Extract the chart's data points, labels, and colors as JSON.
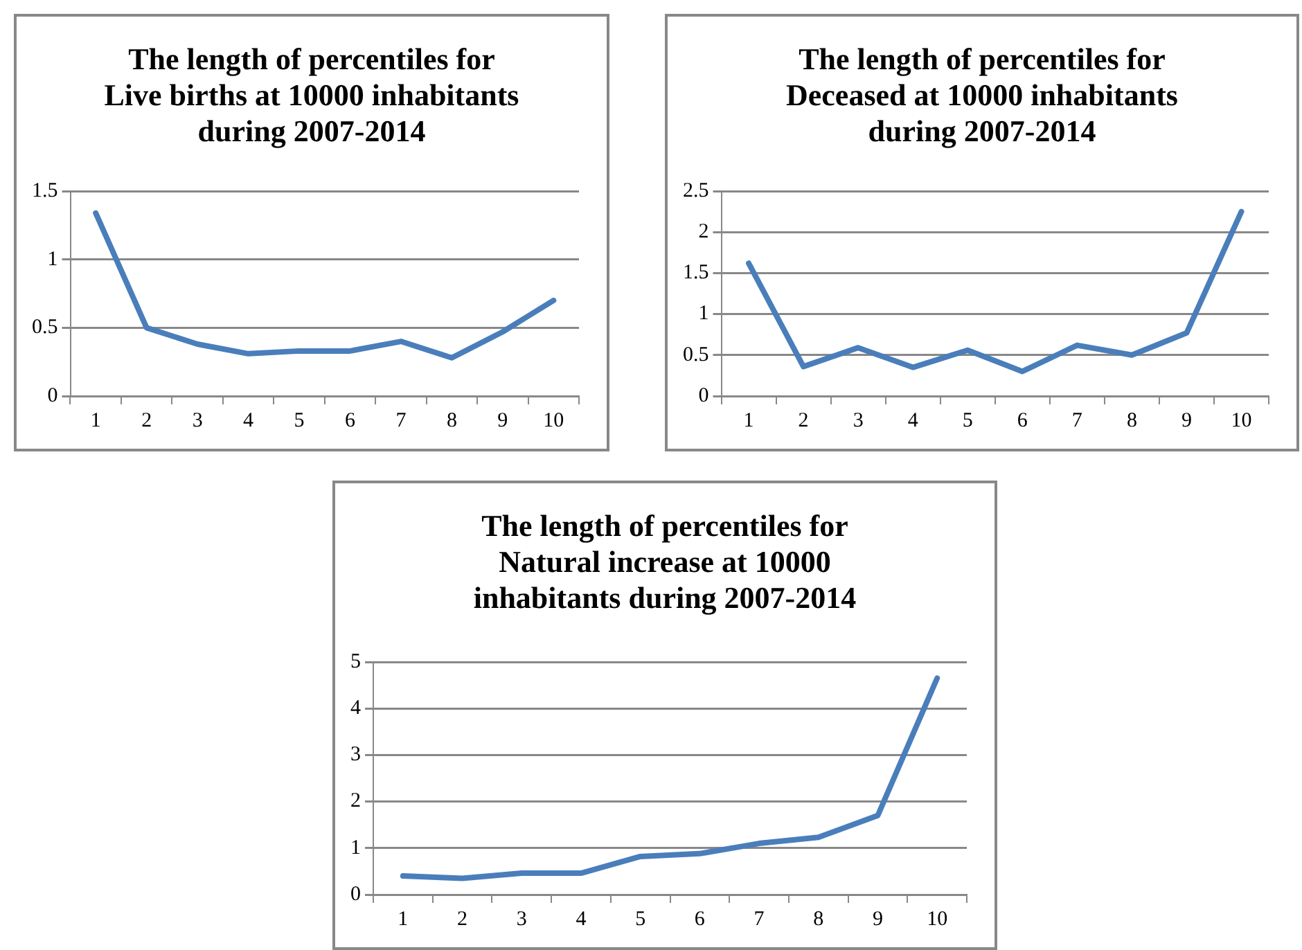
{
  "chart_data": [
    {
      "type": "line",
      "title": "The length of percentiles for\nLive births at 10000 inhabitants\nduring 2007-2014",
      "categories": [
        "1",
        "2",
        "3",
        "4",
        "5",
        "6",
        "7",
        "8",
        "9",
        "10"
      ],
      "series": [
        {
          "color": "#4a7ebb",
          "values": [
            1.34,
            0.5,
            0.38,
            0.31,
            0.33,
            0.33,
            0.4,
            0.28,
            0.47,
            0.7
          ]
        }
      ],
      "ylim": [
        0,
        1.5
      ],
      "yticks": [
        0,
        0.5,
        1,
        1.5
      ],
      "grid": "y",
      "legend": false,
      "marker": "none",
      "line_style": "solid"
    },
    {
      "type": "line",
      "title": "The length of percentiles for\nDeceased  at 10000 inhabitants\nduring 2007-2014",
      "categories": [
        "1",
        "2",
        "3",
        "4",
        "5",
        "6",
        "7",
        "8",
        "9",
        "10"
      ],
      "series": [
        {
          "color": "#4a7ebb",
          "values": [
            1.62,
            0.36,
            0.59,
            0.35,
            0.56,
            0.3,
            0.62,
            0.5,
            0.77,
            2.25
          ]
        }
      ],
      "ylim": [
        0,
        2.5
      ],
      "yticks": [
        0,
        0.5,
        1,
        1.5,
        2,
        2.5
      ],
      "grid": "y",
      "legend": false,
      "marker": "none",
      "line_style": "solid"
    },
    {
      "type": "line",
      "title": "The length of percentiles for\nNatural increase at 10000\ninhabitants during 2007-2014",
      "categories": [
        "1",
        "2",
        "3",
        "4",
        "5",
        "6",
        "7",
        "8",
        "9",
        "10"
      ],
      "series": [
        {
          "color": "#4a7ebb",
          "values": [
            0.4,
            0.35,
            0.46,
            0.46,
            0.82,
            0.88,
            1.1,
            1.23,
            1.7,
            4.65
          ]
        }
      ],
      "ylim": [
        0,
        5
      ],
      "yticks": [
        0,
        1,
        2,
        3,
        4,
        5
      ],
      "grid": "y",
      "legend": false,
      "marker": "none",
      "line_style": "solid"
    }
  ]
}
